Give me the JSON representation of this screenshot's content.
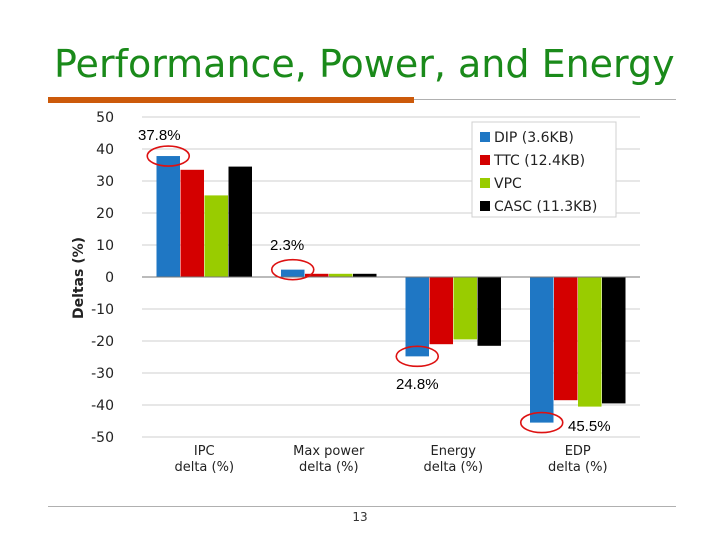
{
  "slide": {
    "title": "Performance, Power, and Energy",
    "page_number": "13"
  },
  "colors": {
    "title": "#1a8a1a",
    "accent_rule": "#cc5a0a",
    "highlight_circle": "#dd1111"
  },
  "chart_data": {
    "type": "bar",
    "ylabel": "Deltas (%)",
    "ylim": [
      -50,
      50
    ],
    "yticks": [
      50,
      40,
      30,
      20,
      10,
      0,
      -10,
      -20,
      -30,
      -40,
      -50
    ],
    "grid": true,
    "legend_position": "top-right",
    "categories": [
      [
        "IPC",
        "delta (%)"
      ],
      [
        "Max power",
        "delta (%)"
      ],
      [
        "Energy",
        "delta (%)"
      ],
      [
        "EDP",
        "delta (%)"
      ]
    ],
    "series": [
      {
        "name": "DIP (3.6KB)",
        "color": "#1f77c4",
        "values": [
          37.8,
          2.3,
          -24.8,
          -45.5
        ]
      },
      {
        "name": "TTC (12.4KB)",
        "color": "#d40000",
        "values": [
          33.5,
          1.0,
          -21.0,
          -38.5
        ]
      },
      {
        "name": "VPC",
        "color": "#99cc00",
        "values": [
          25.5,
          1.0,
          -19.5,
          -40.5
        ]
      },
      {
        "name": "CASC (11.3KB)",
        "color": "#000000",
        "values": [
          34.5,
          1.0,
          -21.5,
          -39.5
        ]
      }
    ],
    "annotations": [
      {
        "text": "37.8%",
        "category": 0
      },
      {
        "text": "2.3%",
        "category": 1
      },
      {
        "text": "24.8%",
        "category": 2
      },
      {
        "text": "45.5%",
        "category": 3
      }
    ]
  }
}
